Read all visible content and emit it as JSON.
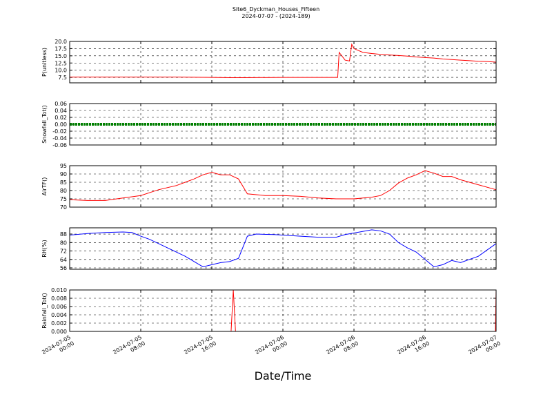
{
  "title": "Site6_Dyckman_Houses_Fifteen",
  "subtitle": "2024-07-07 - (2024-189)",
  "xlabel": "Date/Time",
  "chart_data": [
    {
      "type": "line",
      "ylabel": "P(unitless)",
      "color": "#ff0000",
      "ylim": [
        5.6,
        20
      ],
      "yticks": [
        7.5,
        {
          "value": 10,
          "label": "10.0"
        },
        12.5,
        {
          "value": 15,
          "label": "15.0"
        },
        17.5,
        {
          "value": 20,
          "label": "20.0"
        }
      ],
      "grid": true,
      "xlim": [
        "2024-07-05 00:00",
        "2024-07-07 00:00"
      ],
      "xticks": [
        "2024-07-05 00:00",
        "2024-07-05 08:00",
        "2024-07-05 16:00",
        "2024-07-06 00:00",
        "2024-07-06 08:00",
        "2024-07-06 16:00",
        "2024-07-07 00:00"
      ],
      "x": [
        "2024-07-05 00:00",
        "2024-07-05 04:00",
        "2024-07-05 08:00",
        "2024-07-05 12:00",
        "2024-07-05 16:00",
        "2024-07-05 18:00",
        "2024-07-05 20:00",
        "2024-07-06 00:00",
        "2024-07-06 04:00",
        "2024-07-06 06:10",
        "2024-07-06 06:20",
        "2024-07-06 07:00",
        "2024-07-06 07:30",
        "2024-07-06 07:45",
        "2024-07-06 08:00",
        "2024-07-06 09:00",
        "2024-07-06 10:00",
        "2024-07-06 11:00",
        "2024-07-06 12:00",
        "2024-07-06 13:00",
        "2024-07-06 14:00",
        "2024-07-06 15:00",
        "2024-07-06 16:00",
        "2024-07-06 17:00",
        "2024-07-06 18:00",
        "2024-07-06 19:00",
        "2024-07-06 20:00",
        "2024-07-06 21:00",
        "2024-07-06 22:00",
        "2024-07-06 23:00",
        "2024-07-07 00:00"
      ],
      "values": [
        7.6,
        7.6,
        7.6,
        7.6,
        7.5,
        7.4,
        7.4,
        7.5,
        7.5,
        7.5,
        16.2,
        13.5,
        13.2,
        19,
        17.5,
        16.2,
        15.8,
        15.5,
        15.3,
        15.1,
        14.9,
        14.6,
        14.4,
        14.2,
        13.9,
        13.7,
        13.5,
        13.3,
        13.1,
        13,
        12.8
      ]
    },
    {
      "type": "line",
      "ylabel": "Snowfall_Tot()",
      "color": "#008000",
      "ylim": [
        -0.06,
        0.06
      ],
      "yticks": [
        -0.06,
        -0.04,
        -0.02,
        {
          "value": 0,
          "label": "0.00"
        },
        0.02,
        0.04,
        0.06
      ],
      "grid": true,
      "markers": true,
      "xlim": [
        "2024-07-05 00:00",
        "2024-07-07 00:00"
      ],
      "xticks": [
        "2024-07-05 00:00",
        "2024-07-05 08:00",
        "2024-07-05 16:00",
        "2024-07-06 00:00",
        "2024-07-06 08:00",
        "2024-07-06 16:00",
        "2024-07-07 00:00"
      ],
      "x": [
        "2024-07-05 00:00",
        "2024-07-05 04:00",
        "2024-07-05 08:00",
        "2024-07-05 12:00",
        "2024-07-05 16:00",
        "2024-07-05 20:00",
        "2024-07-06 00:00",
        "2024-07-06 04:00",
        "2024-07-06 08:00",
        "2024-07-06 12:00",
        "2024-07-06 16:00",
        "2024-07-06 20:00",
        "2024-07-07 00:00"
      ],
      "values": [
        0,
        0,
        0,
        0,
        0,
        0,
        0,
        0,
        0,
        0,
        0,
        0,
        0
      ]
    },
    {
      "type": "line",
      "ylabel": "AirTF()",
      "color": "#ff0000",
      "ylim": [
        70,
        95
      ],
      "yticks": [
        70,
        75,
        80,
        85,
        90,
        95
      ],
      "grid": true,
      "xlim": [
        "2024-07-05 00:00",
        "2024-07-07 00:00"
      ],
      "xticks": [
        "2024-07-05 00:00",
        "2024-07-05 08:00",
        "2024-07-05 16:00",
        "2024-07-06 00:00",
        "2024-07-06 08:00",
        "2024-07-06 16:00",
        "2024-07-07 00:00"
      ],
      "x": [
        "2024-07-05 00:00",
        "2024-07-05 02:00",
        "2024-07-05 04:00",
        "2024-07-05 06:00",
        "2024-07-05 08:00",
        "2024-07-05 10:00",
        "2024-07-05 12:00",
        "2024-07-05 13:00",
        "2024-07-05 14:00",
        "2024-07-05 15:00",
        "2024-07-05 16:00",
        "2024-07-05 17:00",
        "2024-07-05 18:00",
        "2024-07-05 19:00",
        "2024-07-05 20:00",
        "2024-07-05 22:00",
        "2024-07-06 00:00",
        "2024-07-06 02:00",
        "2024-07-06 04:00",
        "2024-07-06 06:00",
        "2024-07-06 08:00",
        "2024-07-06 10:00",
        "2024-07-06 11:00",
        "2024-07-06 12:00",
        "2024-07-06 13:00",
        "2024-07-06 14:00",
        "2024-07-06 15:00",
        "2024-07-06 16:00",
        "2024-07-06 17:00",
        "2024-07-06 18:00",
        "2024-07-06 19:00",
        "2024-07-06 20:00",
        "2024-07-06 22:00",
        "2024-07-07 00:00"
      ],
      "values": [
        74.5,
        74,
        74,
        75.5,
        77,
        80.5,
        83,
        85,
        87,
        89.5,
        91,
        89.5,
        89.5,
        87,
        78,
        77,
        77,
        76.5,
        75.5,
        75,
        75,
        76,
        77,
        80,
        84.5,
        87.5,
        89.5,
        92,
        90.5,
        88.5,
        88.5,
        86.5,
        83.5,
        80.5
      ]
    },
    {
      "type": "line",
      "ylabel": "RH(%)",
      "color": "#0000ff",
      "ylim": [
        54.7,
        93.9
      ],
      "yticks": [
        56,
        64,
        72,
        80,
        88
      ],
      "grid": true,
      "xlim": [
        "2024-07-05 00:00",
        "2024-07-07 00:00"
      ],
      "xticks": [
        "2024-07-05 00:00",
        "2024-07-05 08:00",
        "2024-07-05 16:00",
        "2024-07-06 00:00",
        "2024-07-06 08:00",
        "2024-07-06 16:00",
        "2024-07-07 00:00"
      ],
      "x": [
        "2024-07-05 00:00",
        "2024-07-05 02:00",
        "2024-07-05 04:00",
        "2024-07-05 06:00",
        "2024-07-05 07:00",
        "2024-07-05 08:00",
        "2024-07-05 09:00",
        "2024-07-05 10:00",
        "2024-07-05 11:00",
        "2024-07-05 12:00",
        "2024-07-05 13:00",
        "2024-07-05 14:00",
        "2024-07-05 15:00",
        "2024-07-05 16:00",
        "2024-07-05 17:00",
        "2024-07-05 18:00",
        "2024-07-05 19:00",
        "2024-07-05 20:00",
        "2024-07-05 21:00",
        "2024-07-05 23:00",
        "2024-07-06 02:00",
        "2024-07-06 04:00",
        "2024-07-06 06:00",
        "2024-07-06 07:00",
        "2024-07-06 08:00",
        "2024-07-06 10:00",
        "2024-07-06 11:00",
        "2024-07-06 12:00",
        "2024-07-06 13:00",
        "2024-07-06 14:00",
        "2024-07-06 15:00",
        "2024-07-06 16:00",
        "2024-07-06 17:00",
        "2024-07-06 18:00",
        "2024-07-06 19:00",
        "2024-07-06 20:00",
        "2024-07-06 22:00",
        "2024-07-07 00:00"
      ],
      "values": [
        87,
        88.5,
        89.5,
        90,
        89.5,
        86,
        83,
        79,
        75,
        71,
        67,
        62,
        57,
        59,
        61,
        62,
        65,
        86,
        88,
        87.5,
        86,
        85,
        85,
        87.5,
        89,
        92,
        91,
        88,
        80,
        75,
        71,
        64,
        57,
        59,
        63,
        61,
        67,
        79
      ]
    },
    {
      "type": "line",
      "ylabel": "Rainfall_Tot()",
      "color": "#ff0000",
      "ylim": [
        0,
        0.01
      ],
      "yticks": [
        {
          "value": 0,
          "label": "0.000"
        },
        {
          "value": 0.002,
          "label": "0.002"
        },
        {
          "value": 0.004,
          "label": "0.004"
        },
        {
          "value": 0.006,
          "label": "0.006"
        },
        {
          "value": 0.008,
          "label": "0.008"
        },
        {
          "value": 0.01,
          "label": "0.010"
        }
      ],
      "grid": true,
      "xlim": [
        "2024-07-05 00:00",
        "2024-07-07 00:00"
      ],
      "xticks": [
        {
          "value": "2024-07-05 00:00",
          "label": "2024-07-05 00:00"
        },
        {
          "value": "2024-07-05 08:00",
          "label": "2024-07-05 08:00"
        },
        {
          "value": "2024-07-05 16:00",
          "label": "2024-07-05 16:00"
        },
        {
          "value": "2024-07-06 00:00",
          "label": "2024-07-06 00:00"
        },
        {
          "value": "2024-07-06 08:00",
          "label": "2024-07-06 08:00"
        },
        {
          "value": "2024-07-06 16:00",
          "label": "2024-07-06 16:00"
        },
        {
          "value": "2024-07-07 00:00",
          "label": "2024-07-07 00:00"
        }
      ],
      "x": [
        "2024-07-05 00:00",
        "2024-07-05 18:10",
        "2024-07-05 18:25",
        "2024-07-05 18:40",
        "2024-07-06 23:55",
        "2024-07-07 00:00"
      ],
      "values": [
        0,
        0,
        0.01,
        0,
        0,
        0.01
      ]
    }
  ]
}
